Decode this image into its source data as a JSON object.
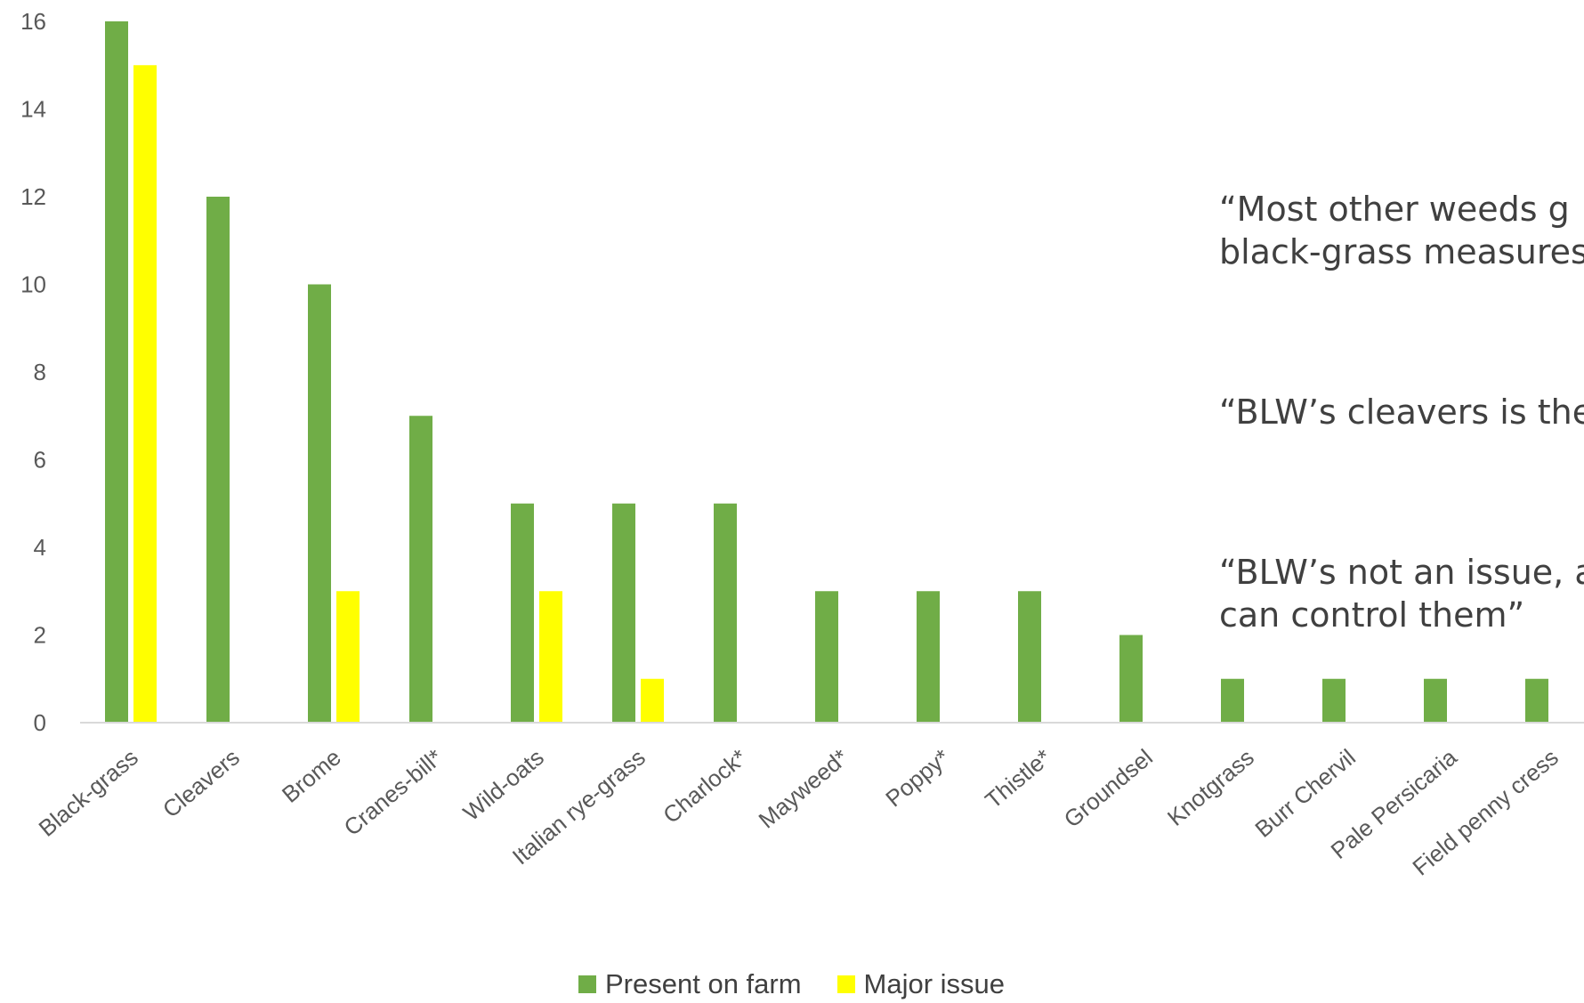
{
  "chart_data": {
    "type": "bar",
    "categories": [
      "Black-grass",
      "Cleavers",
      "Brome",
      "Cranes-bill*",
      "Wild-oats",
      "Italian rye-grass",
      "Charlock*",
      "Mayweed*",
      "Poppy*",
      "Thistle*",
      "Groundsel",
      "Knotgrass",
      "Burr Chervil",
      "Pale Persicaria",
      "Field penny cress"
    ],
    "series": [
      {
        "name": "Present on farm",
        "color": "#70ad47",
        "values": [
          16,
          12,
          10,
          7,
          5,
          5,
          5,
          3,
          3,
          3,
          2,
          1,
          1,
          1,
          1
        ]
      },
      {
        "name": "Major issue",
        "color": "#ffff00",
        "values": [
          15,
          0,
          3,
          0,
          3,
          1,
          0,
          0,
          0,
          0,
          0,
          0,
          0,
          0,
          0
        ]
      }
    ],
    "ylim": [
      0,
      16
    ],
    "yticks": [
      "0",
      "2",
      "4",
      "6",
      "8",
      "10",
      "12",
      "14",
      "16"
    ],
    "grid": false,
    "legend_position": "bottom"
  },
  "quotes": [
    "“Most other weeds g\nblack-grass measures",
    "“BLW’s cleavers is the",
    "“BLW’s not an issue, a\ncan control them”"
  ]
}
